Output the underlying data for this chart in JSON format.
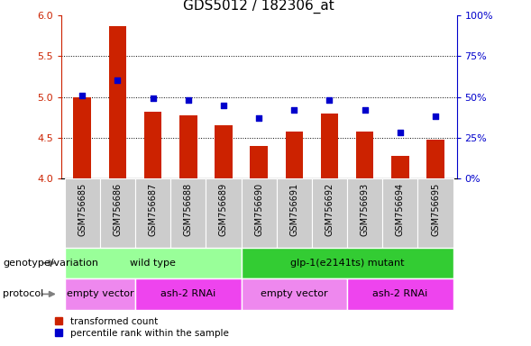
{
  "title": "GDS5012 / 182306_at",
  "samples": [
    "GSM756685",
    "GSM756686",
    "GSM756687",
    "GSM756688",
    "GSM756689",
    "GSM756690",
    "GSM756691",
    "GSM756692",
    "GSM756693",
    "GSM756694",
    "GSM756695"
  ],
  "bar_values": [
    5.0,
    5.87,
    4.82,
    4.77,
    4.65,
    4.4,
    4.57,
    4.8,
    4.57,
    4.27,
    4.47
  ],
  "scatter_values_pct": [
    51,
    60,
    49,
    48,
    45,
    37,
    42,
    48,
    42,
    28,
    38
  ],
  "ylim_left": [
    4.0,
    6.0
  ],
  "ylim_right": [
    0,
    100
  ],
  "yticks_left": [
    4.0,
    4.5,
    5.0,
    5.5,
    6.0
  ],
  "yticks_right": [
    0,
    25,
    50,
    75,
    100
  ],
  "ytick_labels_right": [
    "0%",
    "25%",
    "50%",
    "75%",
    "100%"
  ],
  "bar_color": "#cc2200",
  "scatter_color": "#0000cc",
  "bar_width": 0.5,
  "genotype_groups": [
    {
      "label": "wild type",
      "start": 0,
      "end": 4,
      "color": "#99ff99"
    },
    {
      "label": "glp-1(e2141ts) mutant",
      "start": 5,
      "end": 10,
      "color": "#33cc33"
    }
  ],
  "protocol_groups": [
    {
      "label": "empty vector",
      "start": 0,
      "end": 1,
      "color": "#ee88ee"
    },
    {
      "label": "ash-2 RNAi",
      "start": 2,
      "end": 4,
      "color": "#ee44ee"
    },
    {
      "label": "empty vector",
      "start": 5,
      "end": 7,
      "color": "#ee88ee"
    },
    {
      "label": "ash-2 RNAi",
      "start": 8,
      "end": 10,
      "color": "#ee44ee"
    }
  ],
  "legend_bar_label": "transformed count",
  "legend_scatter_label": "percentile rank within the sample",
  "genotype_label": "genotype/variation",
  "protocol_label": "protocol",
  "title_color": "#000000",
  "left_axis_color": "#cc2200",
  "right_axis_color": "#0000cc",
  "tick_bg_color": "#cccccc",
  "fig_bg": "#ffffff"
}
